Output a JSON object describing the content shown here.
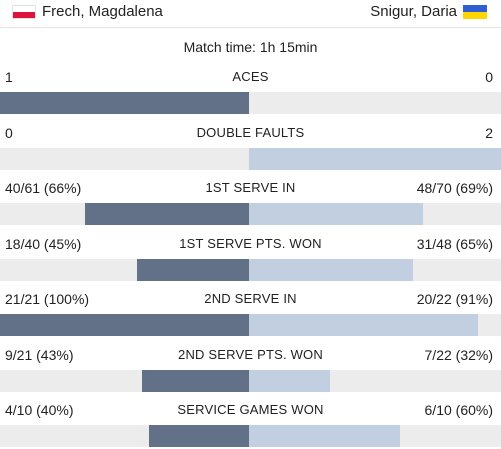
{
  "players": {
    "home": {
      "name": "Frech, Magdalena",
      "flag": "poland-flag-icon"
    },
    "away": {
      "name": "Snigur, Daria",
      "flag": "ukraine-flag-icon"
    }
  },
  "match_time": "Match time: 1h 15min",
  "colors": {
    "home_bar": "#627187",
    "away_bar": "#c2cfe0",
    "track": "#ececec"
  },
  "stats": [
    {
      "label": "ACES",
      "home": "1",
      "away": "0",
      "home_share": 1.0,
      "away_share": 0.0
    },
    {
      "label": "DOUBLE FAULTS",
      "home": "0",
      "away": "2",
      "home_share": 0.0,
      "away_share": 1.0
    },
    {
      "label": "1ST SERVE IN",
      "home": "40/61 (66%)",
      "away": "48/70 (69%)",
      "home_share": 0.66,
      "away_share": 0.69
    },
    {
      "label": "1ST SERVE PTS. WON",
      "home": "18/40 (45%)",
      "away": "31/48 (65%)",
      "home_share": 0.45,
      "away_share": 0.65
    },
    {
      "label": "2ND SERVE IN",
      "home": "21/21 (100%)",
      "away": "20/22 (91%)",
      "home_share": 1.0,
      "away_share": 0.91
    },
    {
      "label": "2ND SERVE PTS. WON",
      "home": "9/21 (43%)",
      "away": "7/22 (32%)",
      "home_share": 0.43,
      "away_share": 0.32
    },
    {
      "label": "SERVICE GAMES WON",
      "home": "4/10 (40%)",
      "away": "6/10 (60%)",
      "home_share": 0.4,
      "away_share": 0.6
    }
  ]
}
